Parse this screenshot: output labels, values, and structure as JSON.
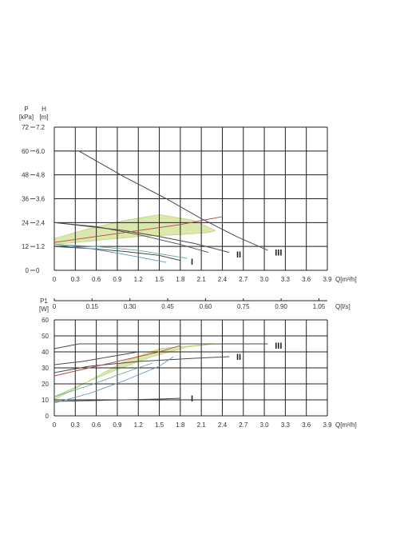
{
  "colors": {
    "grid": "#1f1f1f",
    "curve": "#4a4a4a",
    "band_fill": "#d8e6a4",
    "band_stroke": "#b9cf72",
    "red": "#b7474c",
    "blue": "#5e96c2",
    "teal": "#5ea9a0",
    "text": "#333333"
  },
  "chart_data": [
    {
      "type": "line",
      "id": "head",
      "xlabel": "Q[m³/h]",
      "ylabel_left": "P [kPa]",
      "ylabel_right": "H [m]",
      "xlim": [
        0,
        3.9
      ],
      "ylim": [
        0,
        72
      ],
      "x_ticks": [
        "0",
        "0.3",
        "0.6",
        "0.9",
        "1.2",
        "1.5",
        "1.8",
        "2.1",
        "2.4",
        "2.7",
        "3.0",
        "3.3",
        "3.6",
        "3.9"
      ],
      "y_ticks_kpa": [
        "0",
        "12",
        "24",
        "36",
        "48",
        "60",
        "72"
      ],
      "y_ticks_m": [
        "0",
        "1.2",
        "2.4",
        "3.6",
        "4.8",
        "6.0",
        "7.2"
      ],
      "grid": true,
      "series": [
        {
          "name": "III",
          "color": "#4a4a4a",
          "x": [
            0,
            0.35,
            1.0,
            1.6,
            2.1,
            2.6,
            3.05
          ],
          "y": [
            60,
            60,
            47,
            36,
            26,
            17,
            10
          ]
        },
        {
          "name": "II",
          "color": "#4a4a4a",
          "x": [
            0,
            0.5,
            1.0,
            1.5,
            2.0,
            2.5
          ],
          "y": [
            24,
            22,
            20,
            17,
            13.5,
            9
          ]
        },
        {
          "name": "I",
          "color": "#4a4a4a",
          "x": [
            0,
            0.5,
            1.0,
            1.5,
            1.8
          ],
          "y": [
            12,
            11,
            9.5,
            7.5,
            5
          ]
        },
        {
          "color": "#5e96c2",
          "x": [
            0,
            0.5,
            1.0,
            1.6
          ],
          "y": [
            13,
            11,
            8,
            4
          ]
        },
        {
          "color": "#5ea9a0",
          "x": [
            0,
            0.6,
            1.2,
            1.9
          ],
          "y": [
            13,
            12,
            10,
            6
          ]
        },
        {
          "color": "#b7474c",
          "x": [
            0,
            0.6,
            1.2,
            1.8,
            2.4
          ],
          "y": [
            14,
            17,
            20,
            23,
            27
          ]
        },
        {
          "color": "#4a4a4a",
          "x": [
            0,
            0.6,
            1.2,
            1.8,
            2.2
          ],
          "y": [
            24,
            22,
            18,
            13,
            9
          ]
        }
      ],
      "band": {
        "x": [
          0,
          0.5,
          1.0,
          1.5,
          2.0,
          2.3,
          2.2,
          1.8,
          1.2,
          0.6,
          0
        ],
        "y": [
          16,
          21,
          25,
          28,
          25,
          20,
          19,
          18,
          17,
          15,
          13
        ]
      },
      "annotations": [
        {
          "text": "I",
          "x": 1.95,
          "y": 4.5
        },
        {
          "text": "II",
          "x": 2.6,
          "y": 8
        },
        {
          "text": "III",
          "x": 3.15,
          "y": 9
        }
      ]
    },
    {
      "type": "line",
      "id": "power",
      "xlabel": "Q[m³/h]",
      "x2label": "Q[l/s]",
      "ylabel": "P1 [W]",
      "xlim": [
        0,
        3.9
      ],
      "ylim": [
        0,
        60
      ],
      "x_ticks": [
        "0",
        "0.3",
        "0.6",
        "0.9",
        "1.2",
        "1.5",
        "1.8",
        "2.1",
        "2.4",
        "2.7",
        "3.0",
        "3.3",
        "3.6",
        "3.9"
      ],
      "x2_ticks": [
        "0",
        "0.15",
        "0.30",
        "0.45",
        "0.60",
        "0.75",
        "0.90",
        "1.05"
      ],
      "y_ticks": [
        "0",
        "10",
        "20",
        "30",
        "40",
        "50",
        "60"
      ],
      "grid": true,
      "series": [
        {
          "name": "III",
          "color": "#4a4a4a",
          "x": [
            0,
            0.35,
            1.0,
            2.0,
            3.05
          ],
          "y": [
            42,
            45,
            45,
            45,
            45
          ]
        },
        {
          "name": "II",
          "color": "#4a4a4a",
          "x": [
            0,
            0.5,
            1.2,
            2.0,
            2.5
          ],
          "y": [
            27,
            31,
            34,
            36,
            37
          ]
        },
        {
          "name": "I",
          "color": "#4a4a4a",
          "x": [
            0,
            0.5,
            1.0,
            1.5,
            1.8
          ],
          "y": [
            9,
            9.5,
            10,
            10.5,
            11
          ]
        },
        {
          "color": "#b7474c",
          "x": [
            0,
            0.5,
            1.0,
            1.5,
            1.8
          ],
          "y": [
            25,
            30,
            35,
            40,
            44
          ]
        },
        {
          "color": "#5e96c2",
          "x": [
            0,
            0.5,
            1.0,
            1.5,
            1.7
          ],
          "y": [
            8,
            14,
            22,
            31,
            37
          ]
        },
        {
          "color": "#5ea9a0",
          "x": [
            0,
            0.5,
            1.0,
            1.4
          ],
          "y": [
            12,
            19,
            27,
            33
          ]
        },
        {
          "color": "#4a4a4a",
          "x": [
            0,
            0.4,
            0.8,
            1.2
          ],
          "y": [
            32,
            34,
            37,
            40
          ]
        }
      ],
      "band": {
        "x": [
          0,
          0.4,
          0.9,
          1.4,
          1.9,
          2.3,
          2.0,
          1.5,
          1.0,
          0.5,
          0
        ],
        "y": [
          12,
          20,
          29,
          37,
          43,
          45,
          44,
          42,
          34,
          22,
          10
        ]
      },
      "annotations": [
        {
          "text": "I",
          "x": 1.95,
          "y": 11
        },
        {
          "text": "II",
          "x": 2.6,
          "y": 37
        },
        {
          "text": "III",
          "x": 3.15,
          "y": 44
        }
      ]
    }
  ]
}
